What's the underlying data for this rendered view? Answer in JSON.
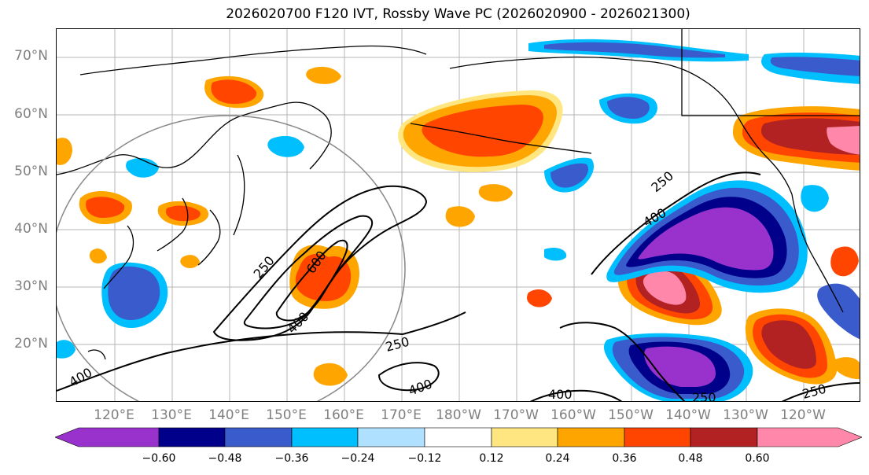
{
  "title": "2026020700 F120 IVT, Rossby Wave PC (2026020900 - 2026021300)",
  "latitude_labels": [
    "70°N",
    "60°N",
    "50°N",
    "40°N",
    "30°N",
    "20°N"
  ],
  "longitude_labels": [
    "120°E",
    "130°E",
    "140°E",
    "150°E",
    "160°E",
    "170°E",
    "180°W",
    "170°W",
    "160°W",
    "150°W",
    "140°W",
    "130°W",
    "120°W"
  ],
  "contour_labels": [
    "250",
    "400",
    "600",
    "250",
    "400",
    "250",
    "400",
    "400",
    "250",
    "400",
    "250",
    "250"
  ],
  "colorbar": {
    "ticks": [
      "−0.60",
      "−0.48",
      "−0.36",
      "−0.24",
      "−0.12",
      "0.12",
      "0.24",
      "0.36",
      "0.48",
      "0.60"
    ],
    "colors": [
      "#9932CC",
      "#00008B",
      "#3A5BCC",
      "#00BFFF",
      "#B0E0FF",
      "#FFFFFF",
      "#FFE680",
      "#FFA500",
      "#FF4500",
      "#B22222",
      "#FF88AA"
    ]
  }
}
